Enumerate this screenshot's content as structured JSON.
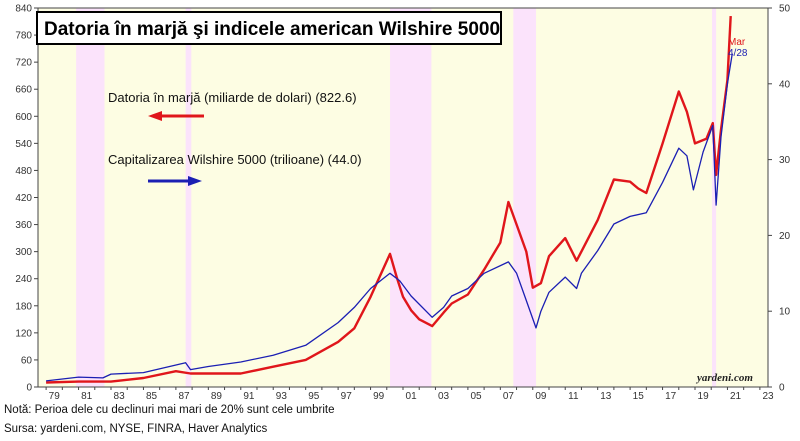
{
  "chart_data": {
    "type": "line",
    "title": "Datoria în marjă şi indicele american Wilshire 5000",
    "left_axis": {
      "ticks": [
        "0",
        "60",
        "120",
        "180",
        "240",
        "300",
        "360",
        "420",
        "480",
        "540",
        "600",
        "660",
        "720",
        "780",
        "840"
      ],
      "range": [
        0,
        840
      ]
    },
    "right_axis": {
      "ticks": [
        "0",
        "10",
        "20",
        "30",
        "40",
        "50"
      ],
      "range": [
        0,
        50
      ]
    },
    "x_axis": {
      "ticks": [
        "79",
        "81",
        "83",
        "85",
        "87",
        "89",
        "91",
        "93",
        "95",
        "97",
        "99",
        "01",
        "03",
        "05",
        "07",
        "09",
        "11",
        "13",
        "15",
        "17",
        "19",
        "21",
        "23"
      ],
      "range": [
        1978.5,
        2023.5
      ]
    },
    "grid": false,
    "shaded_periods": [
      [
        1980.85,
        1982.6
      ],
      [
        1987.6,
        1987.95
      ],
      [
        2000.2,
        2002.75
      ],
      [
        2007.8,
        2009.2
      ],
      [
        2020.05,
        2020.3
      ]
    ],
    "shade_color": "#fbe3fb",
    "background_color": "#fdfde3",
    "series": [
      {
        "name": "Datoria în marjă (miliarde de dolari) (822.6)",
        "axis": "left",
        "color": "#e0161b",
        "end_label": "Mar",
        "points": [
          [
            1979,
            10
          ],
          [
            1981,
            12
          ],
          [
            1983,
            12
          ],
          [
            1985,
            20
          ],
          [
            1987,
            35
          ],
          [
            1987.9,
            30
          ],
          [
            1989,
            30
          ],
          [
            1991,
            30
          ],
          [
            1993,
            45
          ],
          [
            1995,
            60
          ],
          [
            1997,
            100
          ],
          [
            1998,
            130
          ],
          [
            1999,
            200
          ],
          [
            2000.2,
            295
          ],
          [
            2000.6,
            245
          ],
          [
            2001,
            200
          ],
          [
            2001.5,
            170
          ],
          [
            2002,
            150
          ],
          [
            2002.8,
            135
          ],
          [
            2003.5,
            165
          ],
          [
            2004,
            185
          ],
          [
            2005,
            205
          ],
          [
            2006,
            260
          ],
          [
            2007,
            320
          ],
          [
            2007.5,
            410
          ],
          [
            2008,
            360
          ],
          [
            2008.6,
            300
          ],
          [
            2009,
            220
          ],
          [
            2009.5,
            230
          ],
          [
            2010,
            290
          ],
          [
            2011,
            330
          ],
          [
            2011.7,
            280
          ],
          [
            2012,
            300
          ],
          [
            2013,
            370
          ],
          [
            2014,
            460
          ],
          [
            2015,
            455
          ],
          [
            2015.5,
            440
          ],
          [
            2016,
            430
          ],
          [
            2017,
            540
          ],
          [
            2018,
            655
          ],
          [
            2018.5,
            610
          ],
          [
            2019,
            540
          ],
          [
            2019.7,
            550
          ],
          [
            2020.1,
            585
          ],
          [
            2020.3,
            470
          ],
          [
            2020.6,
            570
          ],
          [
            2021,
            680
          ],
          [
            2021.2,
            822
          ]
        ]
      },
      {
        "name": "Capitalizarea Wilshire 5000 (trilioane) (44.0)",
        "axis": "right",
        "color": "#1b1fb3",
        "end_label": "4/28",
        "points": [
          [
            1979,
            0.8
          ],
          [
            1981,
            1.3
          ],
          [
            1982.5,
            1.2
          ],
          [
            1983,
            1.7
          ],
          [
            1985,
            1.9
          ],
          [
            1987.6,
            3.2
          ],
          [
            1987.9,
            2.3
          ],
          [
            1989,
            2.7
          ],
          [
            1991,
            3.3
          ],
          [
            1993,
            4.2
          ],
          [
            1995,
            5.5
          ],
          [
            1997,
            8.5
          ],
          [
            1998,
            10.5
          ],
          [
            1999,
            13
          ],
          [
            2000.2,
            15
          ],
          [
            2000.8,
            14
          ],
          [
            2001.5,
            12
          ],
          [
            2002.8,
            9.2
          ],
          [
            2003.5,
            10.5
          ],
          [
            2004,
            12
          ],
          [
            2005,
            13
          ],
          [
            2006,
            15
          ],
          [
            2007.5,
            16.5
          ],
          [
            2008,
            15
          ],
          [
            2008.5,
            12
          ],
          [
            2009.2,
            7.8
          ],
          [
            2009.5,
            10
          ],
          [
            2010,
            12.5
          ],
          [
            2011,
            14.5
          ],
          [
            2011.7,
            13
          ],
          [
            2012,
            15
          ],
          [
            2013,
            18
          ],
          [
            2014,
            21.5
          ],
          [
            2015,
            22.5
          ],
          [
            2016,
            23
          ],
          [
            2017,
            27
          ],
          [
            2018,
            31.5
          ],
          [
            2018.5,
            30.5
          ],
          [
            2018.9,
            26
          ],
          [
            2019.5,
            31
          ],
          [
            2020.1,
            34.5
          ],
          [
            2020.3,
            24
          ],
          [
            2020.6,
            33
          ],
          [
            2021,
            40
          ],
          [
            2021.3,
            44
          ]
        ]
      }
    ],
    "legend": [
      {
        "label": "Datoria în marjă (miliarde de dolari) (822.6)",
        "arrow": "left",
        "color": "#e0161b"
      },
      {
        "label": "Capitalizarea Wilshire 5000 (trilioane) (44.0)",
        "arrow": "right",
        "color": "#1b1fb3"
      }
    ],
    "credit": "yardeni.com"
  },
  "footer": {
    "note": "Notă: Perioa dele cu declinuri mai mari de 20% sunt cele umbrite",
    "source": "Sursa: yardeni.com, NYSE, FINRA, Haver Analytics"
  }
}
